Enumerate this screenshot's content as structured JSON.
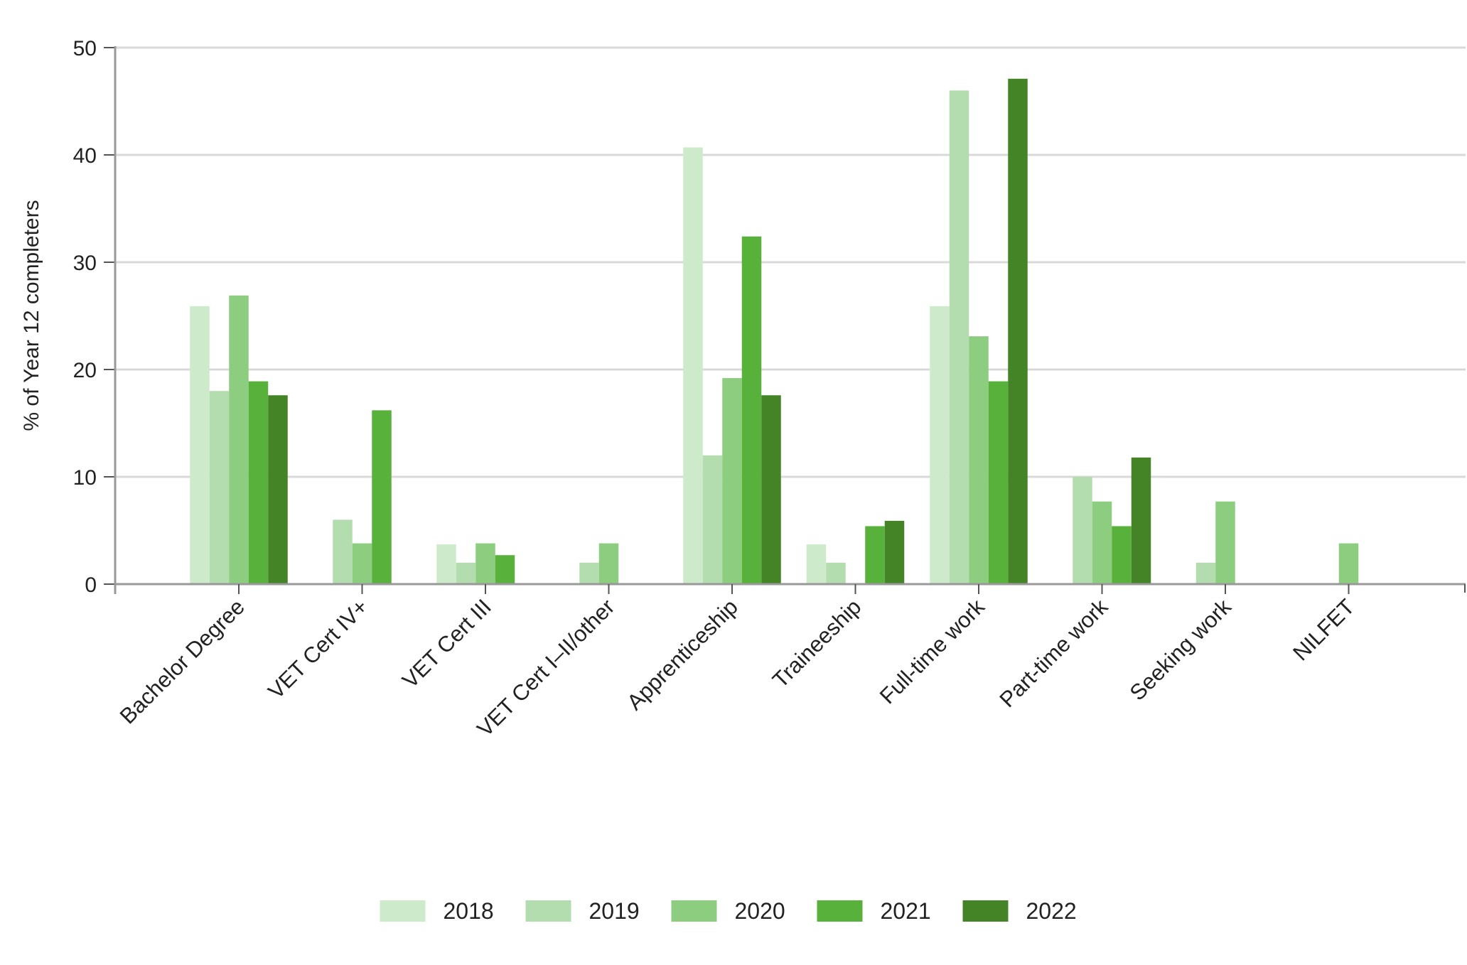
{
  "chart_data": {
    "type": "bar",
    "title": "",
    "xlabel": "",
    "ylabel": "% of Year 12 completers",
    "ylim": [
      0,
      50
    ],
    "yticks": [
      0,
      10,
      20,
      30,
      40,
      50
    ],
    "grid": true,
    "legend_position": "bottom",
    "categories": [
      "Bachelor Degree",
      "VET Cert IV+",
      "VET Cert III",
      "VET Cert I–II/other",
      "Apprenticeship",
      "Traineeship",
      "Full-time work",
      "Part-time work",
      "Seeking work",
      "NILFET"
    ],
    "series": [
      {
        "name": "2018",
        "color": "#cdebca",
        "values": [
          25.9,
          null,
          3.7,
          null,
          40.7,
          3.7,
          25.9,
          null,
          null,
          null
        ]
      },
      {
        "name": "2019",
        "color": "#b3ddae",
        "values": [
          18.0,
          6.0,
          2.0,
          2.0,
          12.0,
          2.0,
          46.0,
          10.0,
          2.0,
          null
        ]
      },
      {
        "name": "2020",
        "color": "#8ccd80",
        "values": [
          26.9,
          3.8,
          3.8,
          3.8,
          19.2,
          null,
          23.1,
          7.7,
          7.7,
          3.8
        ]
      },
      {
        "name": "2021",
        "color": "#58b13a",
        "values": [
          18.9,
          16.2,
          2.7,
          null,
          32.4,
          5.4,
          18.9,
          5.4,
          null,
          null
        ]
      },
      {
        "name": "2022",
        "color": "#448427",
        "values": [
          17.6,
          null,
          null,
          null,
          17.6,
          5.9,
          47.1,
          11.8,
          null,
          null
        ]
      }
    ]
  }
}
